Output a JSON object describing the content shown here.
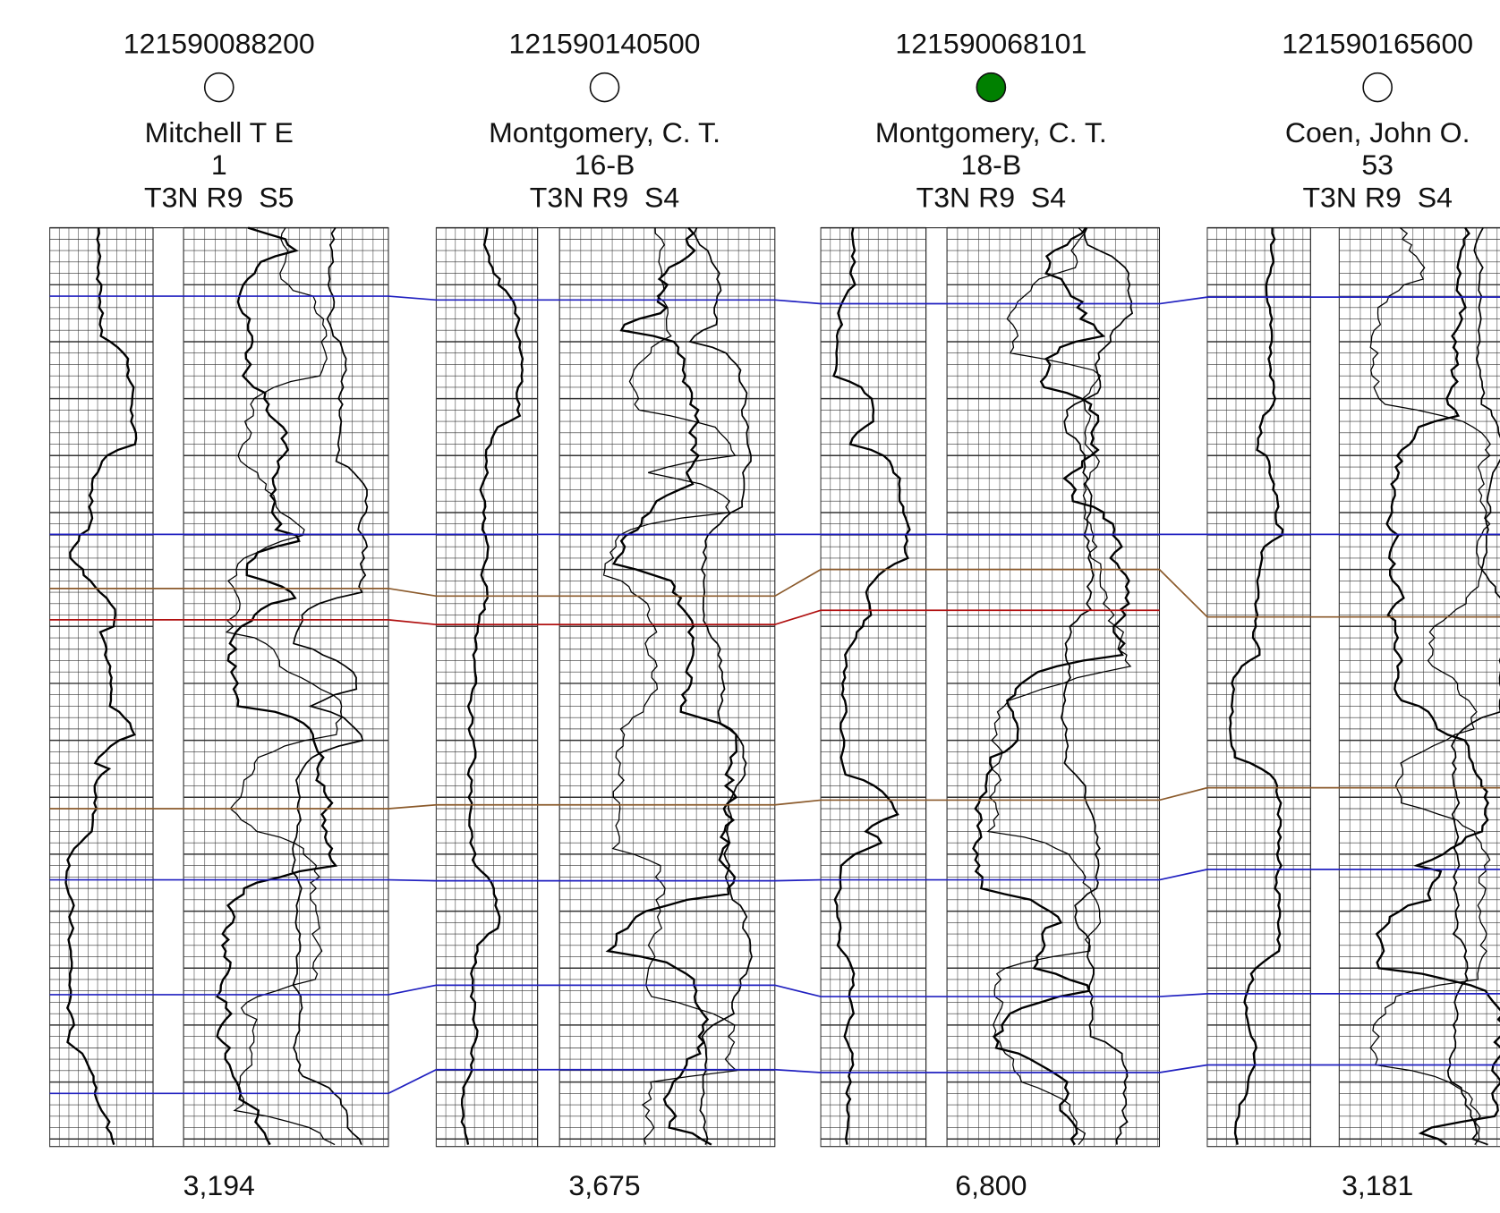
{
  "wells": [
    {
      "api": "121590088200",
      "marker_fill": "none",
      "name": "Mitchell T E",
      "number": "1",
      "location": "T3N R9  S5",
      "bottom": "3,194"
    },
    {
      "api": "121590140500",
      "marker_fill": "none",
      "name": "Montgomery, C. T.",
      "number": "16-B",
      "location": "T3N R9  S4",
      "bottom": "3,675"
    },
    {
      "api": "121590068101",
      "marker_fill": "#008000",
      "name": "Montgomery, C. T.",
      "number": "18-B",
      "location": "T3N R9  S4",
      "bottom": "6,800"
    },
    {
      "api": "121590165600",
      "marker_fill": "none",
      "name": "Coen, John O.",
      "number": "53",
      "location": "T3N R9  S4",
      "bottom": "3,181"
    }
  ]
}
